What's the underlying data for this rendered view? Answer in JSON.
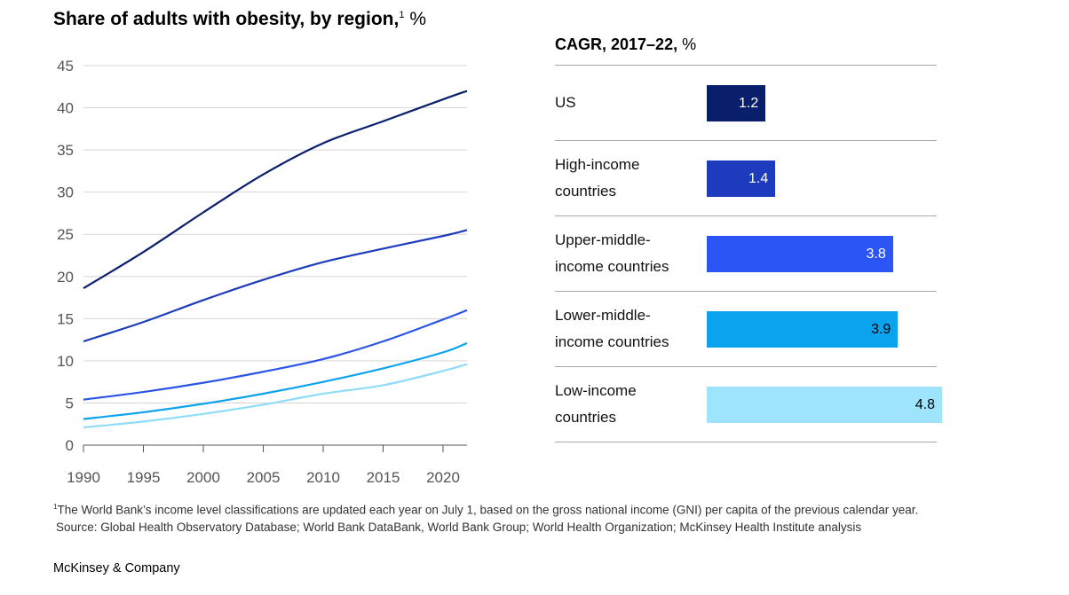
{
  "line_chart": {
    "title": "Share of adults with obesity, by region,",
    "footnote_marker": "1",
    "unit": "%"
  },
  "bar_chart": {
    "title_bold": "CAGR, 2017–22,",
    "title_unit": "%"
  },
  "footnote": {
    "marker": "1",
    "note": "The World Bank’s income level classifications are updated each year on July 1, based on the gross national income (GNI) per capita of the previous calendar year.",
    "source": "Source: Global Health Observatory Database; World Bank DataBank, World Bank Group; World Health Organization; McKinsey Health Institute analysis"
  },
  "logo": "McKinsey & Company",
  "chart_data": [
    {
      "type": "line",
      "title": "Share of adults with obesity, by region,",
      "ylabel": "%",
      "xlim": [
        1990,
        2022
      ],
      "ylim": [
        0,
        45
      ],
      "x_ticks": [
        1990,
        1995,
        2000,
        2005,
        2010,
        2015,
        2020
      ],
      "y_ticks": [
        0,
        5,
        10,
        15,
        20,
        25,
        30,
        35,
        40,
        45
      ],
      "grid": true,
      "x": [
        1990,
        1995,
        2000,
        2005,
        2010,
        2015,
        2020,
        2022
      ],
      "series": [
        {
          "values": [
            18.6,
            22.9,
            27.6,
            32.1,
            35.8,
            38.4,
            41.0,
            42.0
          ],
          "color": "#0a1f6b"
        },
        {
          "values": [
            12.3,
            14.6,
            17.2,
            19.6,
            21.7,
            23.3,
            24.8,
            25.5
          ],
          "color": "#1c3bbd"
        },
        {
          "values": [
            5.4,
            6.3,
            7.4,
            8.7,
            10.2,
            12.3,
            14.9,
            16.0
          ],
          "color": "#2b55e8"
        },
        {
          "values": [
            3.1,
            3.9,
            4.9,
            6.1,
            7.5,
            9.1,
            11.0,
            12.1
          ],
          "color": "#0ca3ee"
        },
        {
          "values": [
            2.1,
            2.8,
            3.7,
            4.8,
            6.1,
            7.1,
            8.8,
            9.6
          ],
          "color": "#8fdcf8"
        }
      ]
    },
    {
      "type": "bar",
      "title": "CAGR, 2017–22, %",
      "orientation": "horizontal",
      "categories": [
        "US",
        "High-income\ncountries",
        "Upper-middle-\nincome countries",
        "Lower-middle-\nincome countries",
        "Low-income\ncountries"
      ],
      "values": [
        1.2,
        1.4,
        3.8,
        3.9,
        4.8
      ],
      "value_labels": [
        "1.2",
        "1.4",
        "3.8",
        "3.9",
        "4.8"
      ],
      "colors": [
        "#0a1f6b",
        "#1c3bbd",
        "#2b55f5",
        "#0ca3ee",
        "#9ee4fc"
      ],
      "label_colors": [
        "#ffffff",
        "#ffffff",
        "#ffffff",
        "#000000",
        "#000000"
      ],
      "xlim": [
        0,
        4.8
      ]
    }
  ]
}
